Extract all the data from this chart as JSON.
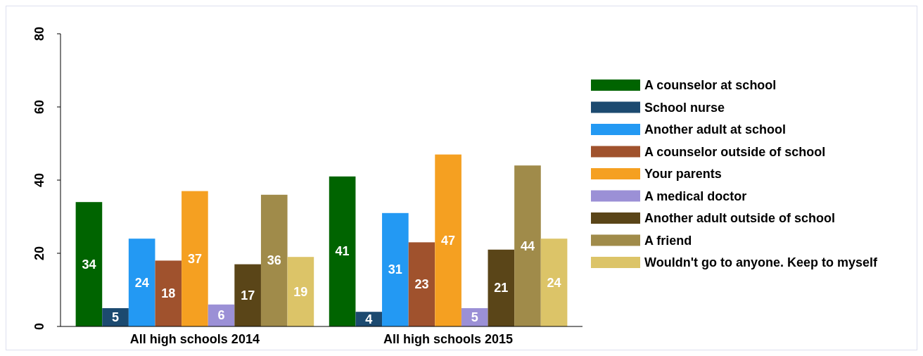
{
  "chart_data": {
    "type": "bar",
    "categories": [
      "All high schools 2014",
      "All high schools 2015"
    ],
    "series": [
      {
        "name": "A counselor at school",
        "color": "#006400",
        "values": [
          34,
          41
        ]
      },
      {
        "name": "School nurse",
        "color": "#1c4a70",
        "values": [
          5,
          4
        ]
      },
      {
        "name": "Another adult at school",
        "color": "#2399f3",
        "values": [
          24,
          31
        ]
      },
      {
        "name": "A counselor outside of school",
        "color": "#a0522d",
        "values": [
          18,
          23
        ]
      },
      {
        "name": "Your parents",
        "color": "#f5a021",
        "values": [
          37,
          47
        ]
      },
      {
        "name": "A medical doctor",
        "color": "#9b90d6",
        "values": [
          6,
          5
        ]
      },
      {
        "name": "Another adult outside of school",
        "color": "#5a4518",
        "values": [
          17,
          21
        ]
      },
      {
        "name": "A friend",
        "color": "#a08b4a",
        "values": [
          36,
          44
        ]
      },
      {
        "name": "Wouldn't go to anyone. Keep to myself",
        "color": "#dcc468",
        "values": [
          19,
          24
        ]
      }
    ],
    "ylim": [
      0,
      80
    ],
    "yticks": [
      0,
      20,
      40,
      60,
      80
    ],
    "data_labels": true,
    "legend": "right",
    "grid": false
  }
}
